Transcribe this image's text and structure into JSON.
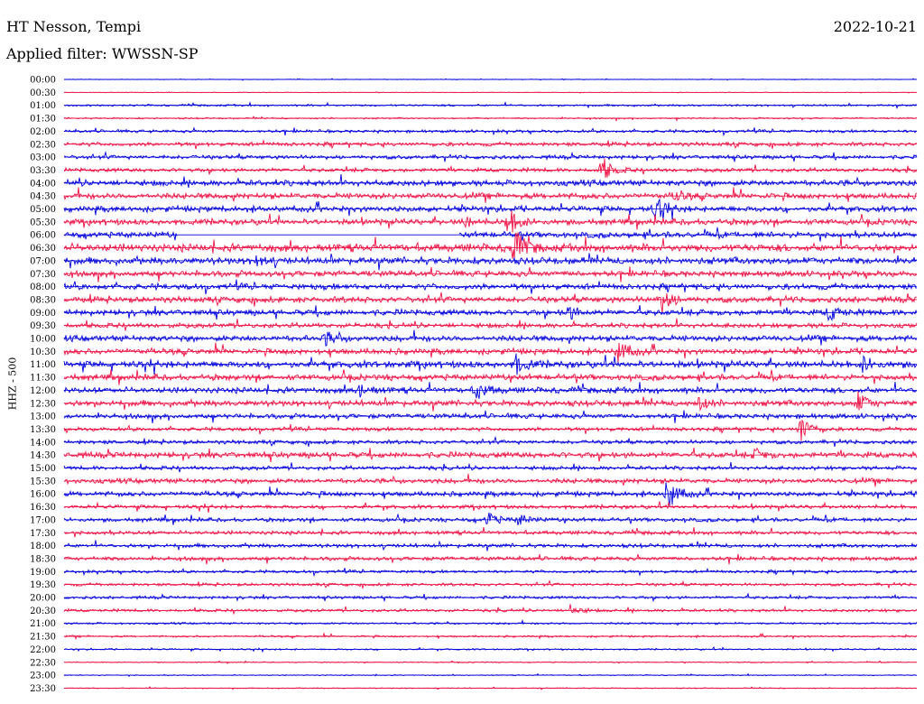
{
  "header": {
    "station": "HT Nesson, Tempi",
    "date": "2022-10-21",
    "filter": "Applied filter: WWSSN-SP",
    "channel": "HHZ - 500"
  },
  "colors": {
    "blue_trace": "#0000dd",
    "red_trace": "#ee1144",
    "background": "#ffffff"
  },
  "chart_data": {
    "type": "line",
    "title": "",
    "ylabel": "HHZ - 500",
    "rows": [
      "00:00",
      "00:30",
      "01:00",
      "01:30",
      "02:00",
      "02:30",
      "03:00",
      "03:30",
      "04:00",
      "04:30",
      "05:00",
      "05:30",
      "06:00",
      "06:30",
      "07:00",
      "07:30",
      "08:00",
      "08:30",
      "09:00",
      "09:30",
      "10:00",
      "10:30",
      "11:00",
      "11:30",
      "12:00",
      "12:30",
      "13:00",
      "13:30",
      "14:00",
      "14:30",
      "15:00",
      "15:30",
      "16:00",
      "16:30",
      "17:00",
      "17:30",
      "18:00",
      "18:30",
      "19:00",
      "19:30",
      "20:00",
      "20:30",
      "21:00",
      "21:30",
      "22:00",
      "22:30",
      "23:00",
      "23:30"
    ],
    "row_minutes": 30,
    "series_colors": [
      "blue",
      "red"
    ],
    "noise_level": [
      0.3,
      0.3,
      1,
      0.8,
      1.5,
      2,
      2,
      2,
      3,
      3,
      3,
      3,
      3,
      4,
      3.5,
      3,
      3,
      3,
      3,
      2.5,
      3,
      3,
      3.5,
      3,
      3,
      3,
      2.5,
      2,
      2,
      3,
      2,
      2.5,
      2.5,
      2,
      2,
      2,
      2,
      2,
      1.5,
      1.5,
      1.5,
      1.5,
      1,
      1,
      0.8,
      0.5,
      0.5,
      0.5
    ],
    "events": [
      {
        "row": "03:30",
        "minute": 18.9,
        "amplitude": 14
      },
      {
        "row": "04:30",
        "minute": 21.5,
        "amplitude": 6
      },
      {
        "row": "05:00",
        "minute": 20.8,
        "amplitude": 14
      },
      {
        "row": "05:30",
        "minute": 15.6,
        "amplitude": 16
      },
      {
        "row": "06:30",
        "minute": 15.8,
        "amplitude": 22
      },
      {
        "row": "07:00",
        "minute": 6.7,
        "amplitude": 7
      },
      {
        "row": "08:30",
        "minute": 21.0,
        "amplitude": 14
      },
      {
        "row": "09:00",
        "minute": 17.7,
        "amplitude": 8
      },
      {
        "row": "09:00",
        "minute": 26.9,
        "amplitude": 9
      },
      {
        "row": "10:00",
        "minute": 9.2,
        "amplitude": 7
      },
      {
        "row": "10:30",
        "minute": 19.5,
        "amplitude": 13
      },
      {
        "row": "11:00",
        "minute": 15.9,
        "amplitude": 10
      },
      {
        "row": "11:00",
        "minute": 28.1,
        "amplitude": 8
      },
      {
        "row": "12:00",
        "minute": 10.4,
        "amplitude": 7
      },
      {
        "row": "12:00",
        "minute": 14.5,
        "amplitude": 10
      },
      {
        "row": "12:30",
        "minute": 22.3,
        "amplitude": 8
      },
      {
        "row": "12:30",
        "minute": 27.9,
        "amplitude": 12
      },
      {
        "row": "13:30",
        "minute": 25.9,
        "amplitude": 16
      },
      {
        "row": "14:30",
        "minute": 24.3,
        "amplitude": 6
      },
      {
        "row": "16:00",
        "minute": 21.2,
        "amplitude": 20
      },
      {
        "row": "17:00",
        "minute": 14.9,
        "amplitude": 8
      },
      {
        "row": "17:00",
        "minute": 16.0,
        "amplitude": 7
      },
      {
        "row": "20:30",
        "minute": 17.8,
        "amplitude": 6
      },
      {
        "row": "05:30",
        "minute": 14.1,
        "amplitude": 5
      }
    ],
    "gaps": [
      {
        "row": "06:00",
        "from_minute": 4.0,
        "to_minute": 13.9
      }
    ]
  }
}
